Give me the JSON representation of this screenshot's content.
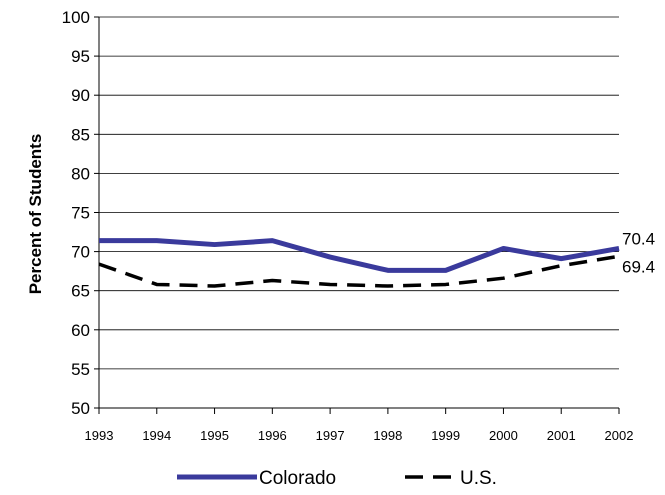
{
  "chart_data": {
    "type": "line",
    "title": "",
    "xlabel": "",
    "ylabel": "Percent of Students",
    "x": [
      "1993",
      "1994",
      "1995",
      "1996",
      "1997",
      "1998",
      "1999",
      "2000",
      "2001",
      "2002"
    ],
    "ylim": [
      50,
      100
    ],
    "yticks": [
      "50",
      "55",
      "60",
      "65",
      "70",
      "75",
      "80",
      "85",
      "90",
      "95",
      "100"
    ],
    "grid": true,
    "legend_position": "bottom",
    "series": [
      {
        "name": "Colorado",
        "values": [
          71.4,
          71.4,
          70.9,
          71.4,
          69.3,
          67.6,
          67.6,
          70.4,
          69.1,
          70.4
        ],
        "color": "#3a3a9c",
        "style": "solid",
        "end_label": "70.4"
      },
      {
        "name": "U.S.",
        "values": [
          68.4,
          65.8,
          65.6,
          66.3,
          65.8,
          65.6,
          65.8,
          66.6,
          68.2,
          69.4
        ],
        "color": "#000000",
        "style": "dashed",
        "end_label": "69.4"
      }
    ]
  }
}
